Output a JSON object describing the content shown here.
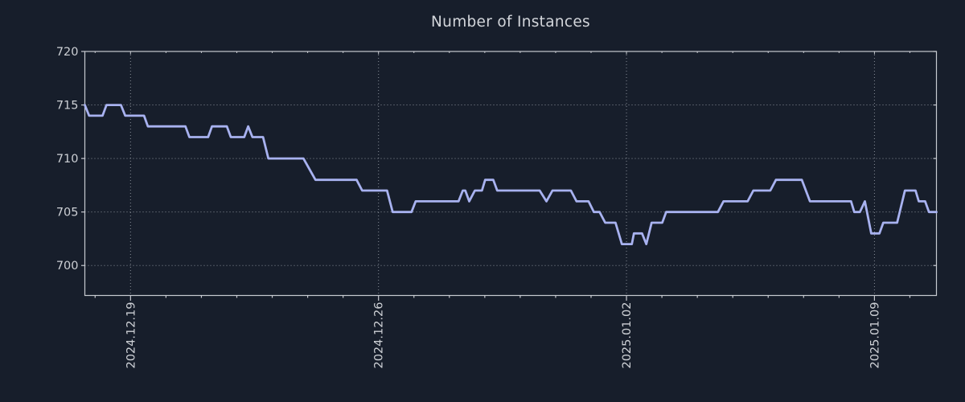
{
  "style": {
    "background": "#171e2b",
    "axis_color": "#c7cad0",
    "grid_color": "#aeb4bc",
    "label_color": "#cdd0d5",
    "title_color": "#d3d6db"
  },
  "chart_data": {
    "type": "line",
    "title": "Number of Instances",
    "legend": "none",
    "grid": true,
    "line_color": "#a8b2f0",
    "y_ticks": [
      700,
      705,
      710,
      715,
      720
    ],
    "y_range": [
      697.2,
      720
    ],
    "x_tick_labels": [
      "2024.12.19",
      "2024.12.26",
      "2025.01.02",
      "2025.01.09"
    ],
    "x_tick_days": [
      0,
      7,
      14,
      21
    ],
    "x_range_days": [
      -1.29,
      22.75
    ],
    "x_unit": "days since 2024.12.19",
    "points": [
      [
        -1.29,
        715
      ],
      [
        -1.17,
        714
      ],
      [
        -0.79,
        714
      ],
      [
        -0.68,
        715
      ],
      [
        -0.27,
        715
      ],
      [
        -0.15,
        714
      ],
      [
        0.38,
        714
      ],
      [
        0.49,
        713
      ],
      [
        1.55,
        713
      ],
      [
        1.66,
        712
      ],
      [
        2.19,
        712
      ],
      [
        2.3,
        713
      ],
      [
        2.72,
        713
      ],
      [
        2.83,
        712
      ],
      [
        3.21,
        712
      ],
      [
        3.32,
        713
      ],
      [
        3.44,
        712
      ],
      [
        3.74,
        712
      ],
      [
        3.89,
        710
      ],
      [
        4.88,
        710
      ],
      [
        5.22,
        708
      ],
      [
        6.38,
        708
      ],
      [
        6.54,
        707
      ],
      [
        7.24,
        707
      ],
      [
        7.4,
        705
      ],
      [
        7.93,
        705
      ],
      [
        8.05,
        706
      ],
      [
        9.26,
        706
      ],
      [
        9.38,
        707
      ],
      [
        9.45,
        707
      ],
      [
        9.56,
        706
      ],
      [
        9.72,
        707
      ],
      [
        9.92,
        707
      ],
      [
        10.01,
        708
      ],
      [
        10.24,
        708
      ],
      [
        10.35,
        707
      ],
      [
        11.55,
        707
      ],
      [
        11.74,
        706
      ],
      [
        11.91,
        707
      ],
      [
        12.43,
        707
      ],
      [
        12.59,
        706
      ],
      [
        12.93,
        706
      ],
      [
        13.08,
        705
      ],
      [
        13.24,
        705
      ],
      [
        13.4,
        704
      ],
      [
        13.69,
        704
      ],
      [
        13.87,
        702
      ],
      [
        14.15,
        702
      ],
      [
        14.21,
        703
      ],
      [
        14.44,
        703
      ],
      [
        14.56,
        702
      ],
      [
        14.71,
        704
      ],
      [
        15.01,
        704
      ],
      [
        15.12,
        705
      ],
      [
        16.58,
        705
      ],
      [
        16.74,
        706
      ],
      [
        17.42,
        706
      ],
      [
        17.58,
        707
      ],
      [
        18.06,
        707
      ],
      [
        18.22,
        708
      ],
      [
        18.95,
        708
      ],
      [
        19.18,
        706
      ],
      [
        20.34,
        706
      ],
      [
        20.43,
        705
      ],
      [
        20.59,
        705
      ],
      [
        20.73,
        706
      ],
      [
        20.91,
        703
      ],
      [
        21.14,
        703
      ],
      [
        21.25,
        704
      ],
      [
        21.64,
        704
      ],
      [
        21.86,
        707
      ],
      [
        22.16,
        707
      ],
      [
        22.25,
        706
      ],
      [
        22.43,
        706
      ],
      [
        22.54,
        705
      ],
      [
        22.75,
        705
      ]
    ]
  }
}
